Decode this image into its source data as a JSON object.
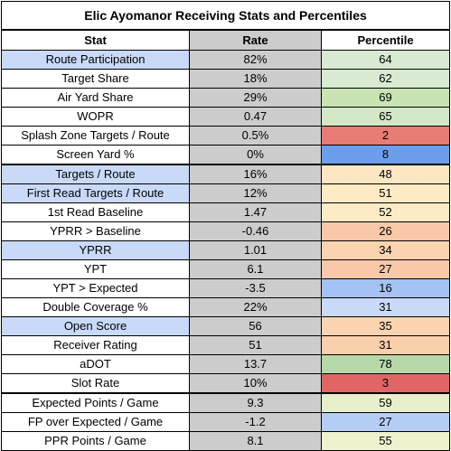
{
  "title": "Elic Ayomanor Receiving Stats and Percentiles",
  "headers": {
    "stat": "Stat",
    "rate": "Rate",
    "percentile": "Percentile"
  },
  "rows": [
    {
      "stat": "Route Participation",
      "rate": "82%",
      "percentile": "64",
      "stat_bg": "#c9daf8",
      "pct_bg": "#d9ead3"
    },
    {
      "stat": "Target Share",
      "rate": "18%",
      "percentile": "62",
      "stat_bg": "#ffffff",
      "pct_bg": "#d9ead3"
    },
    {
      "stat": "Air Yard Share",
      "rate": "29%",
      "percentile": "69",
      "stat_bg": "#ffffff",
      "pct_bg": "#c9e3b5"
    },
    {
      "stat": "WOPR",
      "rate": "0.47",
      "percentile": "65",
      "stat_bg": "#ffffff",
      "pct_bg": "#d3e7c4"
    },
    {
      "stat": "Splash Zone Targets / Route",
      "rate": "0.5%",
      "percentile": "2",
      "stat_bg": "#ffffff",
      "pct_bg": "#e67c73"
    },
    {
      "stat": "Screen Yard %",
      "rate": "0%",
      "percentile": "8",
      "stat_bg": "#ffffff",
      "pct_bg": "#6d9eeb"
    },
    {
      "stat": "Targets / Route",
      "rate": "16%",
      "percentile": "48",
      "stat_bg": "#c9daf8",
      "pct_bg": "#fde6c4"
    },
    {
      "stat": "First Read Targets / Route",
      "rate": "12%",
      "percentile": "51",
      "stat_bg": "#c9daf8",
      "pct_bg": "#fdebc6"
    },
    {
      "stat": "1st Read Baseline",
      "rate": "1.47",
      "percentile": "52",
      "stat_bg": "#ffffff",
      "pct_bg": "#fdebc6"
    },
    {
      "stat": "YPRR > Baseline",
      "rate": "-0.46",
      "percentile": "26",
      "stat_bg": "#ffffff",
      "pct_bg": "#f8c8a8"
    },
    {
      "stat": "YPRR",
      "rate": "1.01",
      "percentile": "34",
      "stat_bg": "#c9daf8",
      "pct_bg": "#fad4b0"
    },
    {
      "stat": "YPT",
      "rate": "6.1",
      "percentile": "27",
      "stat_bg": "#ffffff",
      "pct_bg": "#f8c8a8"
    },
    {
      "stat": "YPT > Expected",
      "rate": "-3.5",
      "percentile": "16",
      "stat_bg": "#ffffff",
      "pct_bg": "#a4c2f4"
    },
    {
      "stat": "Double Coverage %",
      "rate": "22%",
      "percentile": "31",
      "stat_bg": "#ffffff",
      "pct_bg": "#c9daf8"
    },
    {
      "stat": "Open Score",
      "rate": "56",
      "percentile": "35",
      "stat_bg": "#c9daf8",
      "pct_bg": "#fad4b0"
    },
    {
      "stat": "Receiver Rating",
      "rate": "51",
      "percentile": "31",
      "stat_bg": "#ffffff",
      "pct_bg": "#f9cfac"
    },
    {
      "stat": "aDOT",
      "rate": "13.7",
      "percentile": "78",
      "stat_bg": "#ffffff",
      "pct_bg": "#b6d7a8"
    },
    {
      "stat": "Slot Rate",
      "rate": "10%",
      "percentile": "3",
      "stat_bg": "#ffffff",
      "pct_bg": "#e06666"
    },
    {
      "stat": "Expected Points / Game",
      "rate": "9.3",
      "percentile": "59",
      "stat_bg": "#ffffff",
      "pct_bg": "#e6efc9"
    },
    {
      "stat": "FP over Expected / Game",
      "rate": "-1.2",
      "percentile": "27",
      "stat_bg": "#ffffff",
      "pct_bg": "#b4cdf5"
    },
    {
      "stat": "PPR Points / Game",
      "rate": "8.1",
      "percentile": "55",
      "stat_bg": "#ffffff",
      "pct_bg": "#eef2cd"
    }
  ],
  "colors": {
    "rate_bg": "#cccccc",
    "border": "#000000"
  }
}
